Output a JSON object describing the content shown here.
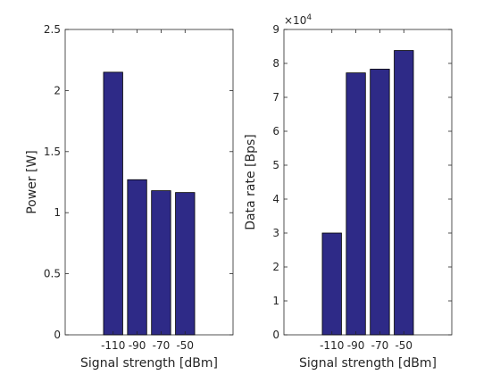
{
  "chart_data": [
    {
      "type": "bar",
      "categories": [
        "-110",
        "-90",
        "-70",
        "-50"
      ],
      "values": [
        2.15,
        1.27,
        1.18,
        1.165
      ],
      "xlabel": "Signal strength [dBm]",
      "ylabel": "Power [W]",
      "ylim": [
        0,
        2.5
      ],
      "yticks": [
        0,
        0.5,
        1,
        1.5,
        2,
        2.5
      ],
      "ytick_labels": [
        "0",
        "0.5",
        "1",
        "1.5",
        "2",
        "2.5"
      ],
      "bar_color": "#2e2a87",
      "grid": false
    },
    {
      "type": "bar",
      "categories": [
        "-110",
        "-90",
        "-70",
        "-50"
      ],
      "values": [
        30000,
        77200,
        78300,
        83800
      ],
      "xlabel": "Signal strength [dBm]",
      "ylabel": "Data rate [Bps]",
      "ylim": [
        0,
        90000
      ],
      "yticks": [
        0,
        10000,
        20000,
        30000,
        40000,
        50000,
        60000,
        70000,
        80000,
        90000
      ],
      "ytick_labels": [
        "0",
        "1",
        "2",
        "3",
        "4",
        "5",
        "6",
        "7",
        "8",
        "9"
      ],
      "exponent_label": "×10",
      "exponent_power": "4",
      "bar_color": "#2e2a87",
      "grid": false
    }
  ]
}
